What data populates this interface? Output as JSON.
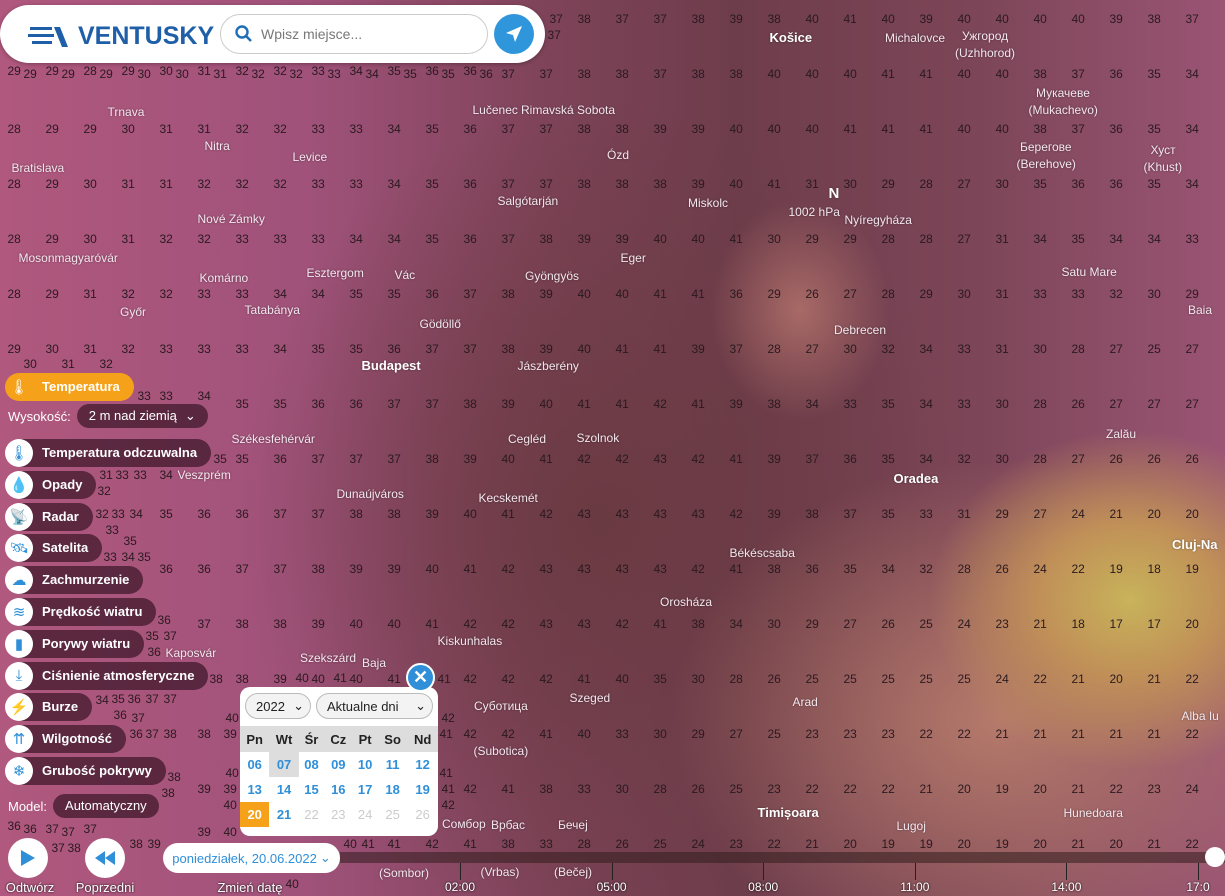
{
  "header": {
    "logo_text": "VENTUSKY",
    "search_placeholder": "Wpisz miejsce..."
  },
  "layers": {
    "active": {
      "label": "Temperatura",
      "icon": "thermometer-icon"
    },
    "height_label": "Wysokość:",
    "height_value": "2 m nad ziemią",
    "items": [
      {
        "label": "Temperatura odczuwalna",
        "icon": "feels-like-icon"
      },
      {
        "label": "Opady",
        "icon": "drop-icon"
      },
      {
        "label": "Radar",
        "icon": "radar-icon"
      },
      {
        "label": "Satelita",
        "icon": "satellite-icon"
      },
      {
        "label": "Zachmurzenie",
        "icon": "cloud-icon"
      },
      {
        "label": "Prędkość wiatru",
        "icon": "wind-icon"
      },
      {
        "label": "Porywy wiatru",
        "icon": "gusts-icon"
      },
      {
        "label": "Ciśnienie atmosferyczne",
        "icon": "pressure-icon"
      },
      {
        "label": "Burze",
        "icon": "lightning-icon"
      },
      {
        "label": "Wilgotność",
        "icon": "humidity-icon"
      },
      {
        "label": "Grubość pokrywy",
        "icon": "snowflake-icon"
      }
    ],
    "model_label": "Model:",
    "model_value": "Automatyczny"
  },
  "calendar": {
    "year": "2022",
    "range": "Aktualne dni",
    "weekdays": [
      "Pn",
      "Wt",
      "Śr",
      "Cz",
      "Pt",
      "So",
      "Nd"
    ],
    "weeks": [
      [
        "06",
        "07",
        "08",
        "09",
        "10",
        "11",
        "12"
      ],
      [
        "13",
        "14",
        "15",
        "16",
        "17",
        "18",
        "19"
      ],
      [
        "20",
        "21",
        "22",
        "23",
        "24",
        "25",
        "26"
      ]
    ],
    "current": "07",
    "selected": "20",
    "disabled": [
      "22",
      "23",
      "24",
      "25",
      "26"
    ]
  },
  "date_pill": "poniedziałek, 20.06.2022",
  "controls": {
    "play": "Odtwórz",
    "prev": "Poprzedni",
    "change_date": "Zmień datę"
  },
  "timeline": {
    "labels": [
      "02:00",
      "05:00",
      "08:00",
      "11:00",
      "14:00",
      "17:0"
    ]
  },
  "pressure": {
    "symbol": "N",
    "value": "1002 hPa"
  },
  "cities": [
    "Košice",
    "Michalovce",
    "Ужгород",
    "(Uzhhorod)",
    "Мукачеве",
    "(Mukachevo)",
    "Берегове",
    "(Berehove)",
    "Хуст",
    "(Khust)",
    "Trnava",
    "Nitra",
    "Rimavská Sobota",
    "Lučenec",
    "Ózd",
    "Bratislava",
    "Levice",
    "Salgótarján",
    "Miskolc",
    "Nové Zámky",
    "Eger",
    "Nyíregyháza",
    "Mosonmagyaróvár",
    "Esztergom",
    "Vác",
    "Gyöngyös",
    "Satu Mare",
    "Komárno",
    "Győr",
    "Tatabánya",
    "Gödöllő",
    "Baia",
    "Jászberény",
    "Debrecen",
    "Budapest",
    "Székesfehérvár",
    "Cegléd",
    "Szolnok",
    "Oradea",
    "Zalău",
    "Veszprém",
    "Dunaújváros",
    "Kecskemét",
    "Cluj-Na",
    "Békéscsaba",
    "Orosháza",
    "Kiskunhalas",
    "Kaposvár",
    "Szekszárd",
    "Szeged",
    "Baja",
    "Суботица",
    "(Subotica)",
    "Arad",
    "Alba Iu",
    "Сомбор",
    "(Sombor)",
    "Timișoara",
    "Hunedoara",
    "Lugoj",
    "Врбас",
    "(Vrbas)",
    "Бечеј",
    "(Bečej)"
  ],
  "temperatures": [
    "29 29 28 29 30 31 32 32 33 34 35 36 36 37 37 38 37 37 38 39 38 40 41 40 39 40 40 40 40 39 38 37",
    "29 29 29 30 30 31 32 32 33 34 35 35 36 37 37 38 38 37 38 38 40 40 40 41 41 40 40 38 37 36 35 34",
    "28 29 29 30 31 31 32 32 33 33 34 35 36 37 37 38 38 39 39 40 40 40 41 41 41 40 40 38 37 36 35 34",
    "28 29 30 31 31 32 32 32 33 33 34 35 36 37 37 38 38 38 39 40 41 31 30 29 28 27 30 35 36 36 35 34",
    "28 29 30 31 32 32 33 33 33 34 34 35 36 37 38 39 39 40 40 41 30 29 29 28 28 27 31 34 35 34 34 33",
    "28 29 31 32 32 33 33 34 34 35 35 36 37 38 39 40 40 41 41 36 29 26 27 28 29 30 31 33 33 32 30 29",
    "29 30 31 32 33 33 33 34 35 35 36 37 37 38 39 40 41 41 39 37 28 27 30 32 34 33 31 30 28 27 25 27",
    "30 31 32 33 33 34 35 35 36 36 37 37 38 39 40 41 41 42 41 39 38 34 33 35 34 33 30 28 26 27 27 27",
    "31 32 33 33 34 35 35 36 37 37 37 38 39 40 41 42 42 43 42 41 39 37 36 35 34 32 30 28 27 26 26 26",
    "32 33 33 34 35 36 36 37 37 38 38 39 40 41 42 43 43 43 43 42 39 38 37 35 33 31 29 27 24 21 20 20",
    "33 34 35 35 36 36 37 37 38 39 39 40 41 42 43 43 43 43 42 41 38 36 35 34 32 28 26 24 22 19 18 19",
    "34 35 36 36 37 37 38 38 39 40 40 41 42 42 43 43 42 41 38 34 30 29 27 26 25 24 23 21 18 17 17 20",
    "35 36 36 37 37 38 38 39 40 40 41 41 42 42 42 41 40 35 30 28 26 25 25 25 25 25 24 22 21 20 21 22",
    "36 36 37 37 38 38 39 40 40 41 41 42 42 42 41 40 33 30 29 27 25 23 23 23 22 22 21 21 21 21 21 22",
    "36 37 37 38 38 39 39 40 40 41 41 42 42 41 38 33 30 28 26 25 23 22 22 22 21 20 19 20 21 22 23 24",
    "37 37 38 38 39 39 40 40 40 41 41 42 41 38 33 28 26 25 24 23 22 21 20 19 19 20 19 20 21 20 21 22"
  ],
  "colors": {
    "accent": "#2f8fd8",
    "active": "#f5a21a",
    "logo": "#1f5fa8"
  }
}
